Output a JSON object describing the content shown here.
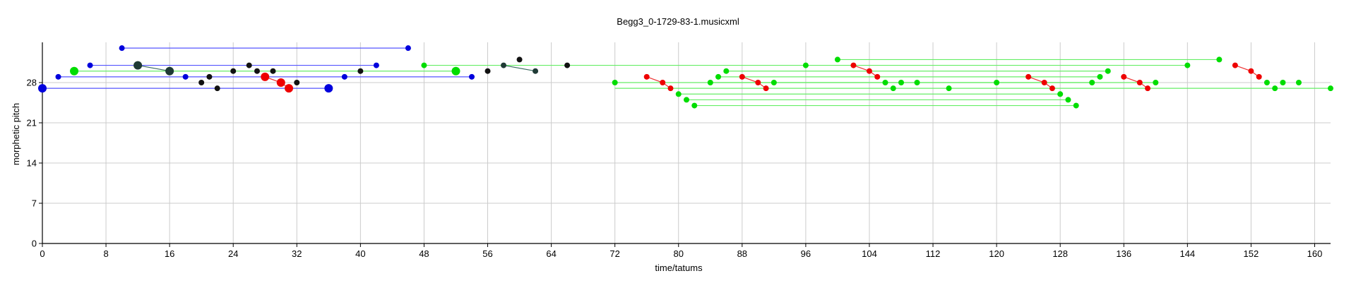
{
  "chart_data": {
    "type": "scatter",
    "title": "Begg3_0-1729-83-1.musicxml",
    "xlabel": "time/tatums",
    "ylabel": "morphetic pitch",
    "xlim": [
      0,
      162
    ],
    "ylim": [
      0,
      35
    ],
    "xticks": [
      0,
      8,
      16,
      24,
      32,
      40,
      48,
      56,
      64,
      72,
      80,
      88,
      96,
      104,
      112,
      120,
      128,
      136,
      144,
      152,
      160
    ],
    "yticks": [
      0,
      7,
      14,
      21,
      28
    ],
    "grid": true,
    "colors": {
      "blue": "#0000dd",
      "green": "#00dd00",
      "red": "#ee0000",
      "black": "#111111",
      "dark": "#1f3a35",
      "blue_line": "#5555ff",
      "green_line": "#66ee66",
      "dark_line": "#3a6a60",
      "red_line": "#ee3333",
      "grid": "#cccccc"
    },
    "series": [
      {
        "color": "blue",
        "segments": [
          {
            "x1": 10,
            "x2": 46,
            "y": 34
          },
          {
            "x1": 6,
            "x2": 42,
            "y": 31
          },
          {
            "x1": 2,
            "x2": 54,
            "y": 29
          },
          {
            "x1": 0,
            "x2": 36,
            "y": 27
          }
        ],
        "points": [
          {
            "x": 10,
            "y": 34
          },
          {
            "x": 46,
            "y": 34
          },
          {
            "x": 6,
            "y": 31
          },
          {
            "x": 42,
            "y": 31
          },
          {
            "x": 2,
            "y": 29
          },
          {
            "x": 18,
            "y": 29
          },
          {
            "x": 38,
            "y": 29
          },
          {
            "x": 54,
            "y": 29
          },
          {
            "x": 0,
            "y": 27,
            "big": true
          },
          {
            "x": 36,
            "y": 27,
            "big": true
          }
        ]
      },
      {
        "color": "green",
        "segments": [
          {
            "x1": 4,
            "x2": 52,
            "y": 30
          },
          {
            "x1": 48,
            "x2": 144,
            "y": 31
          },
          {
            "x1": 100,
            "x2": 148,
            "y": 32
          },
          {
            "x1": 72,
            "x2": 162,
            "y": 27
          },
          {
            "x1": 72,
            "x2": 140,
            "y": 28
          },
          {
            "x1": 80,
            "x2": 128,
            "y": 26
          },
          {
            "x1": 81,
            "x2": 129,
            "y": 25
          },
          {
            "x1": 82,
            "x2": 130,
            "y": 24
          },
          {
            "x1": 84,
            "x2": 132,
            "y": 28
          },
          {
            "x1": 85,
            "x2": 133,
            "y": 29
          },
          {
            "x1": 86,
            "x2": 134,
            "y": 30
          }
        ],
        "points": [
          {
            "x": 4,
            "y": 30,
            "big": true
          },
          {
            "x": 52,
            "y": 30,
            "big": true
          },
          {
            "x": 48,
            "y": 31
          },
          {
            "x": 96,
            "y": 31
          },
          {
            "x": 144,
            "y": 31
          },
          {
            "x": 100,
            "y": 32
          },
          {
            "x": 148,
            "y": 32
          },
          {
            "x": 72,
            "y": 28
          },
          {
            "x": 80,
            "y": 26
          },
          {
            "x": 81,
            "y": 25
          },
          {
            "x": 82,
            "y": 24
          },
          {
            "x": 84,
            "y": 28
          },
          {
            "x": 85,
            "y": 29
          },
          {
            "x": 86,
            "y": 30
          },
          {
            "x": 92,
            "y": 28
          },
          {
            "x": 106,
            "y": 28
          },
          {
            "x": 107,
            "y": 27
          },
          {
            "x": 108,
            "y": 28
          },
          {
            "x": 110,
            "y": 28
          },
          {
            "x": 114,
            "y": 27
          },
          {
            "x": 120,
            "y": 28
          },
          {
            "x": 128,
            "y": 26
          },
          {
            "x": 129,
            "y": 25
          },
          {
            "x": 130,
            "y": 24
          },
          {
            "x": 132,
            "y": 28
          },
          {
            "x": 133,
            "y": 29
          },
          {
            "x": 134,
            "y": 30
          },
          {
            "x": 140,
            "y": 28
          },
          {
            "x": 154,
            "y": 28
          },
          {
            "x": 155,
            "y": 27
          },
          {
            "x": 156,
            "y": 28
          },
          {
            "x": 158,
            "y": 28
          },
          {
            "x": 162,
            "y": 27
          }
        ]
      },
      {
        "color": "red",
        "polylines": [
          [
            {
              "x": 28,
              "y": 29
            },
            {
              "x": 30,
              "y": 28
            },
            {
              "x": 31,
              "y": 27
            }
          ],
          [
            {
              "x": 76,
              "y": 29
            },
            {
              "x": 78,
              "y": 28
            },
            {
              "x": 79,
              "y": 27
            }
          ],
          [
            {
              "x": 88,
              "y": 29
            },
            {
              "x": 90,
              "y": 28
            },
            {
              "x": 91,
              "y": 27
            }
          ],
          [
            {
              "x": 102,
              "y": 31
            },
            {
              "x": 104,
              "y": 30
            },
            {
              "x": 105,
              "y": 29
            }
          ],
          [
            {
              "x": 124,
              "y": 29
            },
            {
              "x": 126,
              "y": 28
            },
            {
              "x": 127,
              "y": 27
            }
          ],
          [
            {
              "x": 136,
              "y": 29
            },
            {
              "x": 138,
              "y": 28
            },
            {
              "x": 139,
              "y": 27
            }
          ],
          [
            {
              "x": 150,
              "y": 31
            },
            {
              "x": 152,
              "y": 30
            },
            {
              "x": 153,
              "y": 29
            }
          ]
        ],
        "big_points": [
          {
            "x": 28,
            "y": 29
          },
          {
            "x": 30,
            "y": 28
          },
          {
            "x": 31,
            "y": 27
          }
        ]
      },
      {
        "color": "black",
        "points": [
          {
            "x": 24,
            "y": 30
          },
          {
            "x": 26,
            "y": 31
          },
          {
            "x": 27,
            "y": 30
          },
          {
            "x": 29,
            "y": 30
          },
          {
            "x": 20,
            "y": 28
          },
          {
            "x": 21,
            "y": 29
          },
          {
            "x": 22,
            "y": 27
          },
          {
            "x": 32,
            "y": 28
          },
          {
            "x": 40,
            "y": 30
          },
          {
            "x": 56,
            "y": 30
          },
          {
            "x": 60,
            "y": 32
          },
          {
            "x": 66,
            "y": 31
          }
        ]
      },
      {
        "color": "dark",
        "segments": [
          {
            "x1": 12,
            "y1": 31,
            "x2": 16,
            "y2": 30
          },
          {
            "x1": 58,
            "y1": 31,
            "x2": 62,
            "y2": 30
          }
        ],
        "points": [
          {
            "x": 12,
            "y": 31,
            "big": true
          },
          {
            "x": 16,
            "y": 30,
            "big": true
          },
          {
            "x": 58,
            "y": 31
          },
          {
            "x": 62,
            "y": 30
          }
        ]
      }
    ]
  }
}
